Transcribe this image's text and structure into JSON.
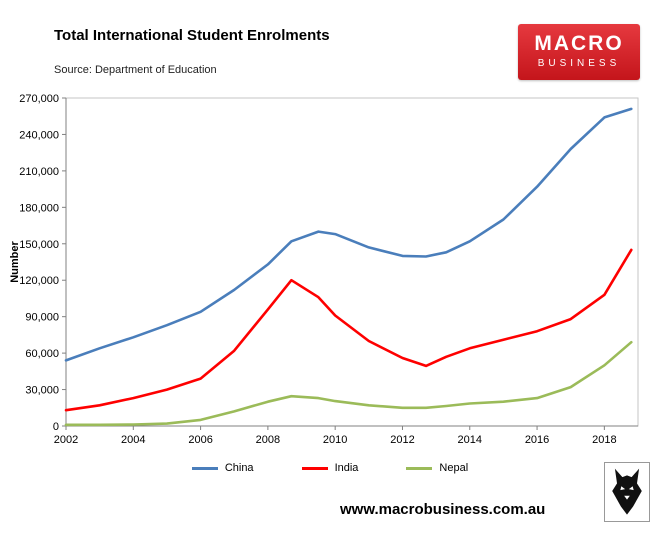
{
  "page": {
    "title": "Total International Student Enrolments",
    "source": "Source: Department of Education",
    "website": "www.macrobusiness.com.au",
    "logo": {
      "line1": "MACRO",
      "line2": "BUSINESS"
    }
  },
  "chart_data": {
    "type": "line",
    "title": "Total International Student Enrolments",
    "xlabel": "",
    "ylabel": "Number",
    "xlim": [
      2002,
      2019
    ],
    "ylim": [
      0,
      270000
    ],
    "x_ticks": [
      2002,
      2004,
      2006,
      2008,
      2010,
      2012,
      2014,
      2016,
      2018
    ],
    "y_ticks": [
      0,
      30000,
      60000,
      90000,
      120000,
      150000,
      180000,
      210000,
      240000,
      270000
    ],
    "grid": false,
    "legend_position": "bottom",
    "x": [
      2002,
      2003,
      2004,
      2005,
      2006,
      2007,
      2008,
      2008.7,
      2009.5,
      2010,
      2011,
      2012,
      2012.7,
      2013.3,
      2014,
      2015,
      2016,
      2017,
      2018,
      2018.8
    ],
    "series": [
      {
        "name": "China",
        "color": "#4A7EBB",
        "values": [
          54000,
          64000,
          73000,
          83000,
          94000,
          112000,
          133000,
          152000,
          160000,
          158000,
          147000,
          140000,
          139500,
          143000,
          152000,
          170000,
          197000,
          228000,
          254000,
          261000
        ]
      },
      {
        "name": "India",
        "color": "#FE0000",
        "values": [
          13000,
          17000,
          23000,
          30000,
          39000,
          62000,
          96000,
          120000,
          106000,
          91000,
          70000,
          56000,
          49500,
          57000,
          64000,
          71000,
          78000,
          88000,
          108000,
          145000
        ]
      },
      {
        "name": "Nepal",
        "color": "#9BBB59",
        "values": [
          1000,
          1000,
          1200,
          2000,
          5000,
          12000,
          20000,
          24500,
          23000,
          20500,
          17000,
          15000,
          15000,
          16500,
          18500,
          20000,
          23000,
          32000,
          50000,
          69000
        ]
      }
    ]
  }
}
